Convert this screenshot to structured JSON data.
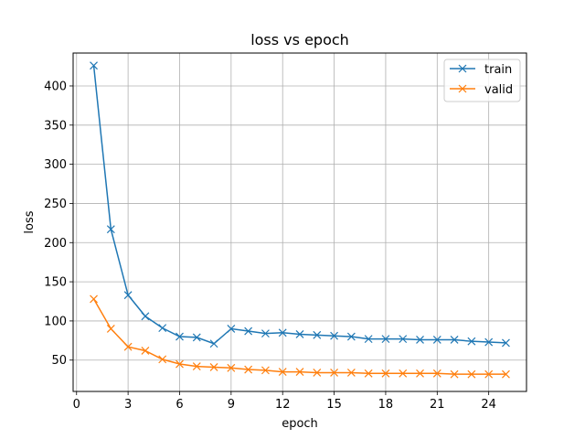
{
  "chart_data": {
    "type": "line",
    "title": "loss vs epoch",
    "xlabel": "epoch",
    "ylabel": "loss",
    "xlim": [
      -0.2,
      26.2
    ],
    "ylim": [
      10,
      442
    ],
    "xticks": [
      0,
      3,
      6,
      9,
      12,
      15,
      18,
      21,
      24
    ],
    "yticks": [
      50,
      100,
      150,
      200,
      250,
      300,
      350,
      400
    ],
    "grid": true,
    "legend_position": "top-right",
    "marker": "x",
    "x": [
      1,
      2,
      3,
      4,
      5,
      6,
      7,
      8,
      9,
      10,
      11,
      12,
      13,
      14,
      15,
      16,
      17,
      18,
      19,
      20,
      21,
      22,
      23,
      24,
      25
    ],
    "series": [
      {
        "name": "train",
        "color": "#1f77b4",
        "values": [
          426,
          217,
          133,
          106,
          91,
          80,
          79,
          71,
          90,
          87,
          84,
          85,
          83,
          82,
          81,
          80,
          77,
          77,
          77,
          76,
          76,
          76,
          74,
          73,
          72
        ]
      },
      {
        "name": "valid",
        "color": "#ff7f0e",
        "values": [
          128,
          90,
          67,
          62,
          51,
          45,
          42,
          41,
          40,
          38,
          37,
          35,
          35,
          34,
          34,
          34,
          33,
          33,
          33,
          33,
          33,
          32,
          32,
          32,
          32
        ]
      }
    ]
  }
}
